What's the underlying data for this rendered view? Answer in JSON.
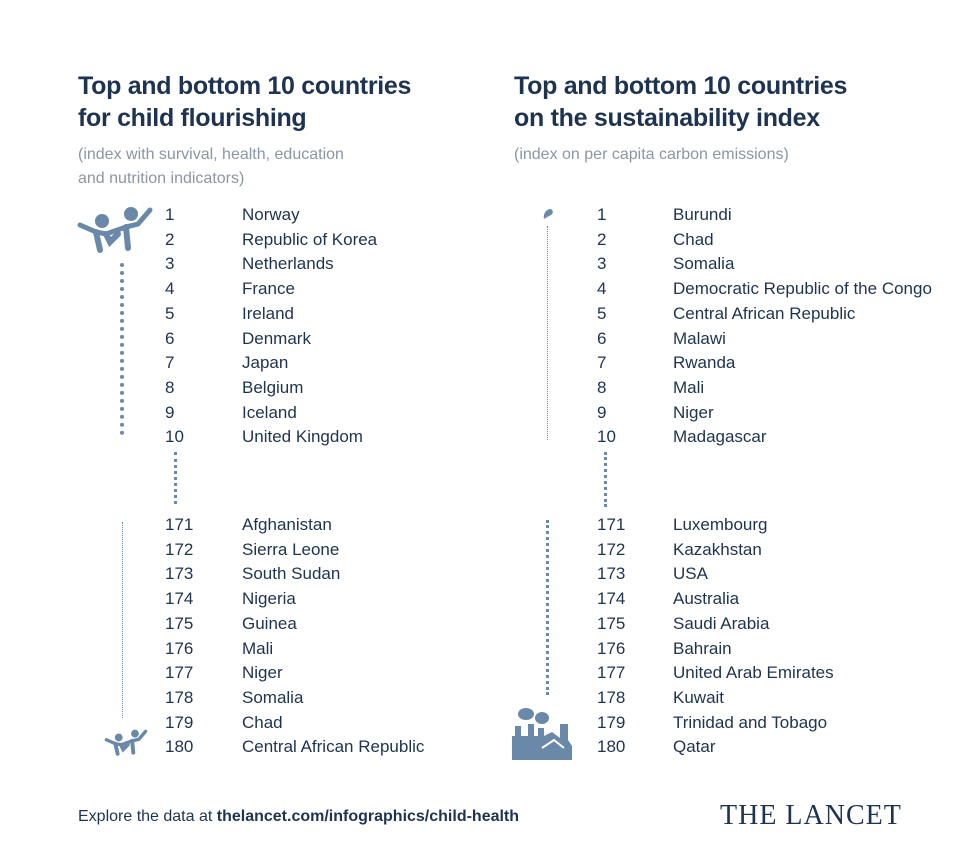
{
  "left": {
    "title_line1": "Top and bottom 10 countries",
    "title_line2": "for child flourishing",
    "subtitle_line1": "(index with survival, health, education",
    "subtitle_line2": "and nutrition indicators)",
    "top_icon": "children-playing-icon",
    "bottom_icon": "children-playing-icon",
    "top": [
      {
        "rank": "1",
        "country": "Norway"
      },
      {
        "rank": "2",
        "country": "Republic of Korea"
      },
      {
        "rank": "3",
        "country": "Netherlands"
      },
      {
        "rank": "4",
        "country": "France"
      },
      {
        "rank": "5",
        "country": "Ireland"
      },
      {
        "rank": "6",
        "country": "Denmark"
      },
      {
        "rank": "7",
        "country": "Japan"
      },
      {
        "rank": "8",
        "country": "Belgium"
      },
      {
        "rank": "9",
        "country": "Iceland"
      },
      {
        "rank": "10",
        "country": "United Kingdom"
      }
    ],
    "bottom": [
      {
        "rank": "171",
        "country": "Afghanistan"
      },
      {
        "rank": "172",
        "country": "Sierra Leone"
      },
      {
        "rank": "173",
        "country": "South Sudan"
      },
      {
        "rank": "174",
        "country": "Nigeria"
      },
      {
        "rank": "175",
        "country": "Guinea"
      },
      {
        "rank": "176",
        "country": "Mali"
      },
      {
        "rank": "177",
        "country": "Niger"
      },
      {
        "rank": "178",
        "country": "Somalia"
      },
      {
        "rank": "179",
        "country": "Chad"
      },
      {
        "rank": "180",
        "country": "Central African Republic"
      }
    ]
  },
  "right": {
    "title_line1": "Top and bottom 10 countries",
    "title_line2": "on the sustainability index",
    "subtitle_line1": "(index on per capita carbon emissions)",
    "top_icon": "smoke-puff-icon",
    "bottom_icon": "factory-icon",
    "top": [
      {
        "rank": "1",
        "country": "Burundi"
      },
      {
        "rank": "2",
        "country": "Chad"
      },
      {
        "rank": "3",
        "country": "Somalia"
      },
      {
        "rank": "4",
        "country": "Democratic Republic of the Congo"
      },
      {
        "rank": "5",
        "country": "Central African Republic"
      },
      {
        "rank": "6",
        "country": "Malawi"
      },
      {
        "rank": "7",
        "country": "Rwanda"
      },
      {
        "rank": "8",
        "country": "Mali"
      },
      {
        "rank": "9",
        "country": "Niger"
      },
      {
        "rank": "10",
        "country": "Madagascar"
      }
    ],
    "bottom": [
      {
        "rank": "171",
        "country": "Luxembourg"
      },
      {
        "rank": "172",
        "country": "Kazakhstan"
      },
      {
        "rank": "173",
        "country": "USA"
      },
      {
        "rank": "174",
        "country": "Australia"
      },
      {
        "rank": "175",
        "country": "Saudi Arabia"
      },
      {
        "rank": "176",
        "country": "Bahrain"
      },
      {
        "rank": "177",
        "country": "United Arab Emirates"
      },
      {
        "rank": "178",
        "country": "Kuwait"
      },
      {
        "rank": "179",
        "country": "Trinidad and Tobago"
      },
      {
        "rank": "180",
        "country": "Qatar"
      }
    ]
  },
  "footer": {
    "prefix": "Explore the data at ",
    "link": "thelancet.com/infographics/child-health",
    "logo": "THE LANCET"
  },
  "colors": {
    "text": "#1e3350",
    "subtitle": "#8a96a3",
    "icon": "#6a89a8"
  }
}
